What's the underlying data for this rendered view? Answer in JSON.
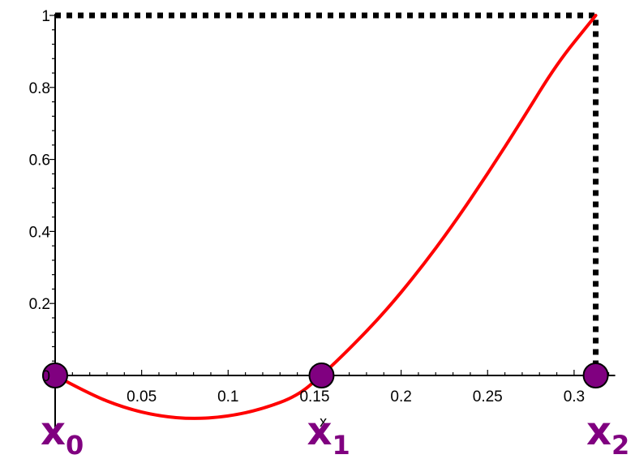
{
  "chart_data": {
    "type": "line",
    "xlabel": "x",
    "ylabel": "",
    "xlim": [
      0,
      0.32
    ],
    "ylim": [
      -0.13,
      1.0
    ],
    "x_ticks": [
      {
        "value": 0.05,
        "label": "0.05"
      },
      {
        "value": 0.1,
        "label": "0.1"
      },
      {
        "value": 0.15,
        "label": "0.15"
      },
      {
        "value": 0.2,
        "label": "0.2"
      },
      {
        "value": 0.25,
        "label": "0.25"
      },
      {
        "value": 0.3,
        "label": "0.3"
      }
    ],
    "y_ticks": [
      {
        "value": 0,
        "label": "0"
      },
      {
        "value": 0.2,
        "label": "0.2"
      },
      {
        "value": 0.4,
        "label": "0.4"
      },
      {
        "value": 0.6,
        "label": "0.6"
      },
      {
        "value": 0.8,
        "label": "0.8"
      },
      {
        "value": 1,
        "label": "1"
      }
    ],
    "grid": false,
    "series": [
      {
        "color": "#ff0000",
        "x": [
          0,
          0.02,
          0.04,
          0.06,
          0.08,
          0.1,
          0.12,
          0.14,
          0.154,
          0.17,
          0.19,
          0.21,
          0.23,
          0.25,
          0.27,
          0.29,
          0.31,
          0.3125
        ],
        "y": [
          0,
          -0.052,
          -0.09,
          -0.113,
          -0.121,
          -0.114,
          -0.093,
          -0.057,
          0,
          0.073,
          0.173,
          0.289,
          0.418,
          0.56,
          0.71,
          0.866,
          0.985,
          1.0
        ]
      }
    ],
    "guide_lines": {
      "style": "dotted",
      "color": "#000000",
      "points": [
        [
          0,
          1
        ],
        [
          0.3125,
          1
        ],
        [
          0.3125,
          0
        ]
      ]
    },
    "markers": [
      {
        "x": 0,
        "y": 0,
        "label": "x",
        "subscript": "0"
      },
      {
        "x": 0.154,
        "y": 0,
        "label": "x",
        "subscript": "1"
      },
      {
        "x": 0.3125,
        "y": 0,
        "label": "x",
        "subscript": "2"
      }
    ],
    "marker_color": "#800080"
  }
}
